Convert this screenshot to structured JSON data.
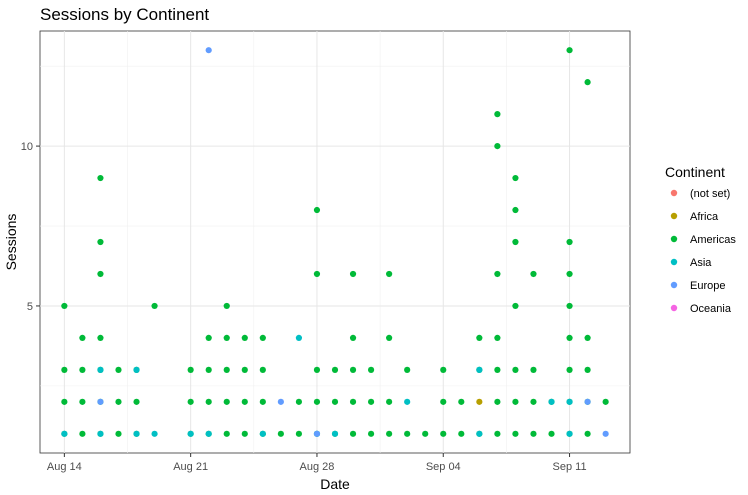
{
  "chart_data": {
    "type": "scatter",
    "title": "Sessions by Continent",
    "xlabel": "Date",
    "ylabel": "Sessions",
    "x_ticks": [
      {
        "date": "2016-08-14",
        "label": "Aug 14"
      },
      {
        "date": "2016-08-21",
        "label": "Aug 21"
      },
      {
        "date": "2016-08-28",
        "label": "Aug 28"
      },
      {
        "date": "2016-09-04",
        "label": "Sep 04"
      },
      {
        "date": "2016-09-11",
        "label": "Sep 11"
      }
    ],
    "y_ticks": [
      5,
      10
    ],
    "xlim": [
      "2016-08-14",
      "2016-09-13"
    ],
    "ylim": [
      1,
      13
    ],
    "grid": true,
    "legend_position": "right",
    "legend_title": "Continent",
    "series": [
      {
        "name": "(not set)",
        "color": "#F8766D",
        "points": []
      },
      {
        "name": "Africa",
        "color": "#B79F00",
        "points": [
          [
            "2016-09-06",
            2
          ]
        ]
      },
      {
        "name": "Americas",
        "color": "#00BA38",
        "points": [
          [
            "2016-08-14",
            1
          ],
          [
            "2016-08-14",
            2
          ],
          [
            "2016-08-14",
            3
          ],
          [
            "2016-08-14",
            5
          ],
          [
            "2016-08-15",
            1
          ],
          [
            "2016-08-15",
            2
          ],
          [
            "2016-08-15",
            3
          ],
          [
            "2016-08-15",
            4
          ],
          [
            "2016-08-16",
            1
          ],
          [
            "2016-08-16",
            2
          ],
          [
            "2016-08-16",
            3
          ],
          [
            "2016-08-16",
            4
          ],
          [
            "2016-08-16",
            6
          ],
          [
            "2016-08-16",
            7
          ],
          [
            "2016-08-16",
            9
          ],
          [
            "2016-08-17",
            1
          ],
          [
            "2016-08-17",
            2
          ],
          [
            "2016-08-17",
            3
          ],
          [
            "2016-08-18",
            1
          ],
          [
            "2016-08-18",
            2
          ],
          [
            "2016-08-18",
            3
          ],
          [
            "2016-08-19",
            5
          ],
          [
            "2016-08-21",
            1
          ],
          [
            "2016-08-21",
            2
          ],
          [
            "2016-08-21",
            3
          ],
          [
            "2016-08-22",
            1
          ],
          [
            "2016-08-22",
            2
          ],
          [
            "2016-08-22",
            3
          ],
          [
            "2016-08-22",
            4
          ],
          [
            "2016-08-23",
            1
          ],
          [
            "2016-08-23",
            2
          ],
          [
            "2016-08-23",
            3
          ],
          [
            "2016-08-23",
            4
          ],
          [
            "2016-08-23",
            5
          ],
          [
            "2016-08-24",
            1
          ],
          [
            "2016-08-24",
            2
          ],
          [
            "2016-08-24",
            3
          ],
          [
            "2016-08-24",
            4
          ],
          [
            "2016-08-25",
            1
          ],
          [
            "2016-08-25",
            2
          ],
          [
            "2016-08-25",
            3
          ],
          [
            "2016-08-25",
            4
          ],
          [
            "2016-08-26",
            1
          ],
          [
            "2016-08-27",
            1
          ],
          [
            "2016-08-27",
            2
          ],
          [
            "2016-08-28",
            1
          ],
          [
            "2016-08-28",
            2
          ],
          [
            "2016-08-28",
            3
          ],
          [
            "2016-08-28",
            6
          ],
          [
            "2016-08-28",
            8
          ],
          [
            "2016-08-29",
            1
          ],
          [
            "2016-08-29",
            2
          ],
          [
            "2016-08-29",
            3
          ],
          [
            "2016-08-30",
            1
          ],
          [
            "2016-08-30",
            2
          ],
          [
            "2016-08-30",
            3
          ],
          [
            "2016-08-30",
            4
          ],
          [
            "2016-08-30",
            6
          ],
          [
            "2016-08-31",
            1
          ],
          [
            "2016-08-31",
            2
          ],
          [
            "2016-08-31",
            3
          ],
          [
            "2016-09-01",
            1
          ],
          [
            "2016-09-01",
            2
          ],
          [
            "2016-09-01",
            4
          ],
          [
            "2016-09-01",
            6
          ],
          [
            "2016-09-02",
            1
          ],
          [
            "2016-09-02",
            3
          ],
          [
            "2016-09-03",
            1
          ],
          [
            "2016-09-04",
            1
          ],
          [
            "2016-09-04",
            2
          ],
          [
            "2016-09-04",
            3
          ],
          [
            "2016-09-05",
            1
          ],
          [
            "2016-09-05",
            2
          ],
          [
            "2016-09-06",
            1
          ],
          [
            "2016-09-06",
            3
          ],
          [
            "2016-09-06",
            4
          ],
          [
            "2016-09-07",
            1
          ],
          [
            "2016-09-07",
            2
          ],
          [
            "2016-09-07",
            3
          ],
          [
            "2016-09-07",
            4
          ],
          [
            "2016-09-07",
            6
          ],
          [
            "2016-09-07",
            10
          ],
          [
            "2016-09-07",
            11
          ],
          [
            "2016-09-08",
            1
          ],
          [
            "2016-09-08",
            2
          ],
          [
            "2016-09-08",
            3
          ],
          [
            "2016-09-08",
            5
          ],
          [
            "2016-09-08",
            7
          ],
          [
            "2016-09-08",
            8
          ],
          [
            "2016-09-08",
            9
          ],
          [
            "2016-09-09",
            1
          ],
          [
            "2016-09-09",
            2
          ],
          [
            "2016-09-09",
            3
          ],
          [
            "2016-09-09",
            6
          ],
          [
            "2016-09-10",
            1
          ],
          [
            "2016-09-10",
            2
          ],
          [
            "2016-09-11",
            1
          ],
          [
            "2016-09-11",
            2
          ],
          [
            "2016-09-11",
            3
          ],
          [
            "2016-09-11",
            4
          ],
          [
            "2016-09-11",
            5
          ],
          [
            "2016-09-11",
            6
          ],
          [
            "2016-09-11",
            7
          ],
          [
            "2016-09-11",
            13
          ],
          [
            "2016-09-12",
            1
          ],
          [
            "2016-09-12",
            2
          ],
          [
            "2016-09-12",
            3
          ],
          [
            "2016-09-12",
            4
          ],
          [
            "2016-09-12",
            12
          ],
          [
            "2016-09-13",
            2
          ]
        ]
      },
      {
        "name": "Asia",
        "color": "#00BFC4",
        "points": [
          [
            "2016-08-14",
            1
          ],
          [
            "2016-08-16",
            1
          ],
          [
            "2016-08-16",
            3
          ],
          [
            "2016-08-18",
            1
          ],
          [
            "2016-08-18",
            3
          ],
          [
            "2016-08-19",
            1
          ],
          [
            "2016-08-21",
            1
          ],
          [
            "2016-08-22",
            1
          ],
          [
            "2016-08-25",
            1
          ],
          [
            "2016-08-27",
            4
          ],
          [
            "2016-08-28",
            1
          ],
          [
            "2016-08-29",
            1
          ],
          [
            "2016-09-02",
            2
          ],
          [
            "2016-09-06",
            1
          ],
          [
            "2016-09-06",
            3
          ],
          [
            "2016-09-10",
            2
          ],
          [
            "2016-09-11",
            1
          ],
          [
            "2016-09-11",
            2
          ]
        ]
      },
      {
        "name": "Europe",
        "color": "#619CFF",
        "points": [
          [
            "2016-08-16",
            2
          ],
          [
            "2016-08-22",
            13
          ],
          [
            "2016-08-26",
            2
          ],
          [
            "2016-08-28",
            1
          ],
          [
            "2016-09-12",
            2
          ],
          [
            "2016-09-13",
            1
          ]
        ]
      },
      {
        "name": "Oceania",
        "color": "#F564E3",
        "points": []
      }
    ]
  }
}
